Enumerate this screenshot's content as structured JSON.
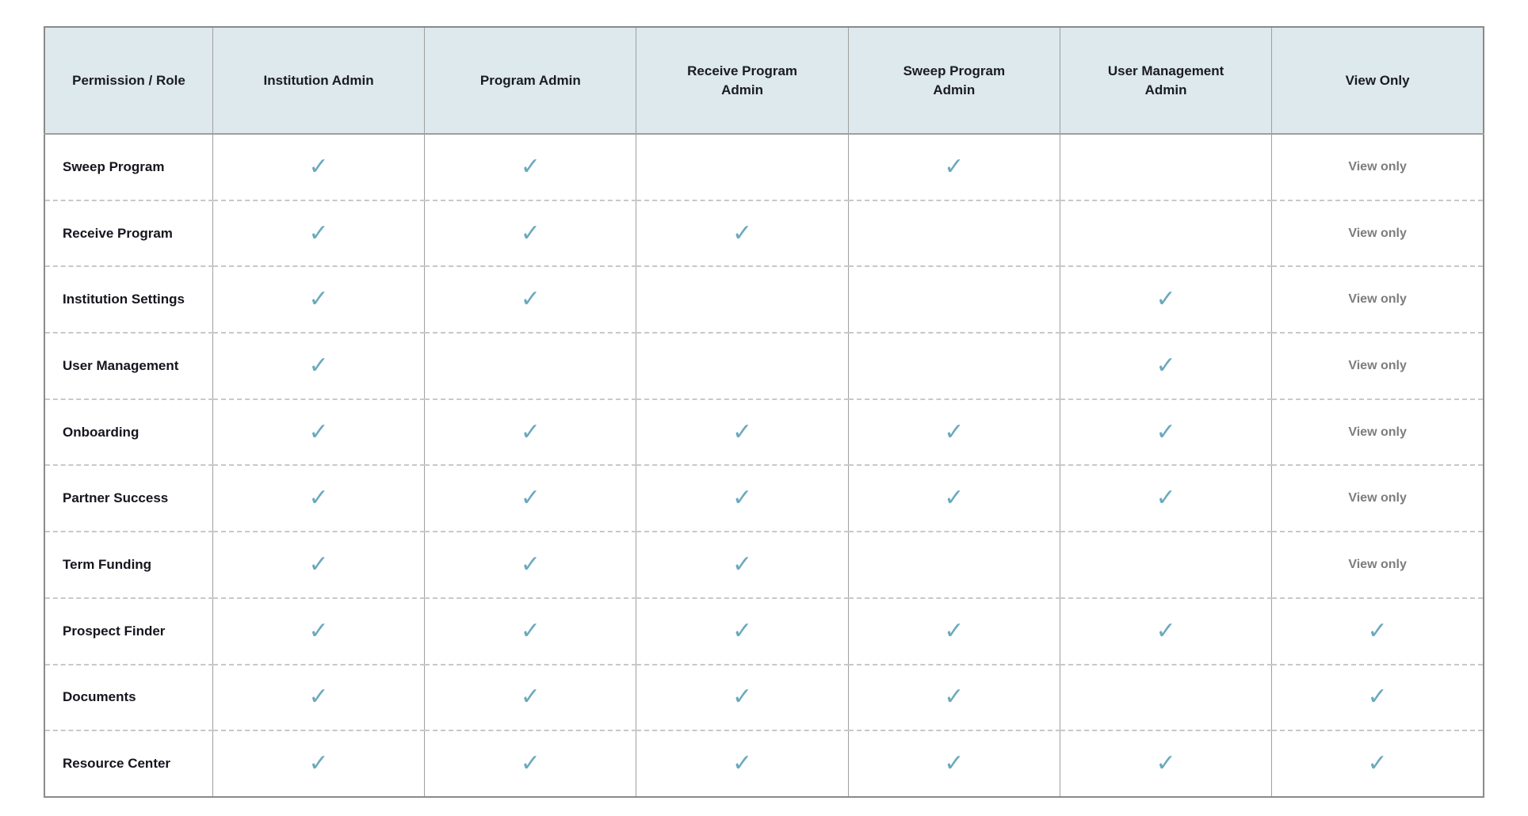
{
  "table": {
    "check_glyph": "✓",
    "view_only_text": "View only",
    "columns": [
      {
        "label": "Permission / Role"
      },
      {
        "label": "Institution Admin"
      },
      {
        "label": "Program Admin"
      },
      {
        "label": "Receive Program Admin"
      },
      {
        "label": "Sweep Program Admin"
      },
      {
        "label": "User Management Admin"
      },
      {
        "label": "View Only"
      }
    ],
    "rows": [
      {
        "label": "Sweep Program",
        "cells": [
          "check",
          "check",
          "none",
          "check",
          "none",
          "view_only"
        ]
      },
      {
        "label": "Receive Program",
        "cells": [
          "check",
          "check",
          "check",
          "none",
          "none",
          "view_only"
        ]
      },
      {
        "label": "Institution Settings",
        "cells": [
          "check",
          "check",
          "none",
          "none",
          "check",
          "view_only"
        ]
      },
      {
        "label": "User Management",
        "cells": [
          "check",
          "none",
          "none",
          "none",
          "check",
          "view_only"
        ]
      },
      {
        "label": "Onboarding",
        "cells": [
          "check",
          "check",
          "check",
          "check",
          "check",
          "view_only"
        ]
      },
      {
        "label": "Partner Success",
        "cells": [
          "check",
          "check",
          "check",
          "check",
          "check",
          "view_only"
        ]
      },
      {
        "label": "Term Funding",
        "cells": [
          "check",
          "check",
          "check",
          "none",
          "none",
          "view_only"
        ]
      },
      {
        "label": "Prospect Finder",
        "cells": [
          "check",
          "check",
          "check",
          "check",
          "check",
          "check"
        ]
      },
      {
        "label": "Documents",
        "cells": [
          "check",
          "check",
          "check",
          "check",
          "none",
          "check"
        ]
      },
      {
        "label": "Resource Center",
        "cells": [
          "check",
          "check",
          "check",
          "check",
          "check",
          "check"
        ]
      }
    ]
  },
  "chart_data": {
    "type": "table",
    "columns": [
      "Permission / Role",
      "Institution Admin",
      "Program Admin",
      "Receive Program Admin",
      "Sweep Program Admin",
      "User Management Admin",
      "View Only"
    ],
    "rows": [
      [
        "Sweep Program",
        "✓",
        "✓",
        "",
        "✓",
        "",
        "View only"
      ],
      [
        "Receive Program",
        "✓",
        "✓",
        "✓",
        "",
        "",
        "View only"
      ],
      [
        "Institution Settings",
        "✓",
        "✓",
        "",
        "",
        "✓",
        "View only"
      ],
      [
        "User Management",
        "✓",
        "",
        "",
        "",
        "✓",
        "View only"
      ],
      [
        "Onboarding",
        "✓",
        "✓",
        "✓",
        "✓",
        "✓",
        "View only"
      ],
      [
        "Partner Success",
        "✓",
        "✓",
        "✓",
        "✓",
        "✓",
        "View only"
      ],
      [
        "Term Funding",
        "✓",
        "✓",
        "✓",
        "",
        "",
        "View only"
      ],
      [
        "Prospect Finder",
        "✓",
        "✓",
        "✓",
        "✓",
        "✓",
        "✓"
      ],
      [
        "Documents",
        "✓",
        "✓",
        "✓",
        "✓",
        "",
        "✓"
      ],
      [
        "Resource Center",
        "✓",
        "✓",
        "✓",
        "✓",
        "✓",
        "✓"
      ]
    ]
  },
  "colors": {
    "header_bg": "#dde9ec",
    "header_text": "#1b1b24",
    "row_label_text": "#15151e",
    "check": "#6ba9be",
    "view_only_text": "#7d7d7d",
    "outer_border": "#8a8a8a",
    "column_divider": "#9f9f9f",
    "row_divider": "#c8c8c8"
  }
}
